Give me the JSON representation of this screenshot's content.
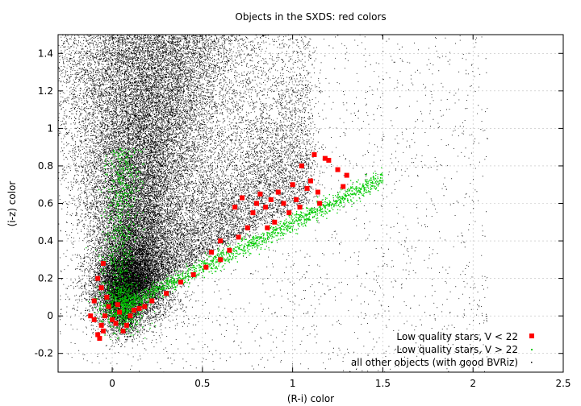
{
  "chart_data": {
    "type": "scatter",
    "title": "Objects in the SXDS: red colors",
    "xlabel": "(R-i) color",
    "ylabel": "(i-z) color",
    "xlim": [
      -0.3,
      2.5
    ],
    "ylim": [
      -0.3,
      1.5
    ],
    "xticks": [
      "0",
      "0.5",
      "1",
      "1.5",
      "2",
      "2.5"
    ],
    "yticks": [
      "-0.2",
      "0",
      "0.2",
      "0.4",
      "0.6",
      "0.8",
      "1",
      "1.2",
      "1.4"
    ],
    "xtick_values": [
      0,
      0.5,
      1,
      1.5,
      2,
      2.5
    ],
    "ytick_values": [
      -0.2,
      0,
      0.2,
      0.4,
      0.6,
      0.8,
      1,
      1.2,
      1.4
    ],
    "grid": true,
    "legend_position": "bottom-right",
    "series": [
      {
        "name": "Low quality stars, V < 22",
        "color": "#ff0000",
        "marker": "square",
        "points": [
          [
            -0.12,
            0.0
          ],
          [
            -0.1,
            -0.02
          ],
          [
            -0.08,
            -0.1
          ],
          [
            -0.06,
            -0.05
          ],
          [
            -0.04,
            0.0
          ],
          [
            -0.1,
            0.08
          ],
          [
            -0.08,
            0.2
          ],
          [
            -0.06,
            0.15
          ],
          [
            -0.05,
            0.28
          ],
          [
            -0.03,
            0.1
          ],
          [
            -0.02,
            0.05
          ],
          [
            0.0,
            -0.02
          ],
          [
            0.02,
            -0.04
          ],
          [
            0.04,
            0.02
          ],
          [
            0.06,
            -0.08
          ],
          [
            0.08,
            -0.05
          ],
          [
            0.1,
            0.0
          ],
          [
            0.12,
            0.03
          ],
          [
            0.15,
            0.04
          ],
          [
            0.18,
            0.05
          ],
          [
            0.22,
            0.08
          ],
          [
            -0.07,
            -0.12
          ],
          [
            -0.05,
            -0.08
          ],
          [
            0.03,
            0.06
          ],
          [
            0.3,
            0.12
          ],
          [
            0.38,
            0.18
          ],
          [
            0.45,
            0.22
          ],
          [
            0.52,
            0.26
          ],
          [
            0.6,
            0.3
          ],
          [
            0.65,
            0.35
          ],
          [
            0.7,
            0.42
          ],
          [
            0.75,
            0.47
          ],
          [
            0.78,
            0.55
          ],
          [
            0.8,
            0.6
          ],
          [
            0.82,
            0.65
          ],
          [
            0.85,
            0.58
          ],
          [
            0.88,
            0.62
          ],
          [
            0.9,
            0.5
          ],
          [
            0.92,
            0.66
          ],
          [
            0.95,
            0.6
          ],
          [
            0.98,
            0.55
          ],
          [
            1.0,
            0.7
          ],
          [
            1.02,
            0.62
          ],
          [
            1.05,
            0.8
          ],
          [
            1.08,
            0.68
          ],
          [
            1.1,
            0.72
          ],
          [
            1.12,
            0.86
          ],
          [
            1.15,
            0.6
          ],
          [
            1.18,
            0.84
          ],
          [
            1.2,
            0.83
          ],
          [
            1.25,
            0.78
          ],
          [
            1.28,
            0.69
          ],
          [
            1.3,
            0.75
          ],
          [
            0.68,
            0.58
          ],
          [
            0.72,
            0.63
          ],
          [
            0.86,
            0.47
          ],
          [
            0.6,
            0.4
          ],
          [
            0.55,
            0.34
          ],
          [
            1.04,
            0.58
          ],
          [
            1.14,
            0.66
          ]
        ]
      },
      {
        "name": "Low quality stars, V > 22",
        "color": "#00cc00",
        "marker": "dot"
      },
      {
        "name": "all other objects (with good BVRiz)",
        "color": "#000000",
        "marker": "dot"
      }
    ]
  }
}
